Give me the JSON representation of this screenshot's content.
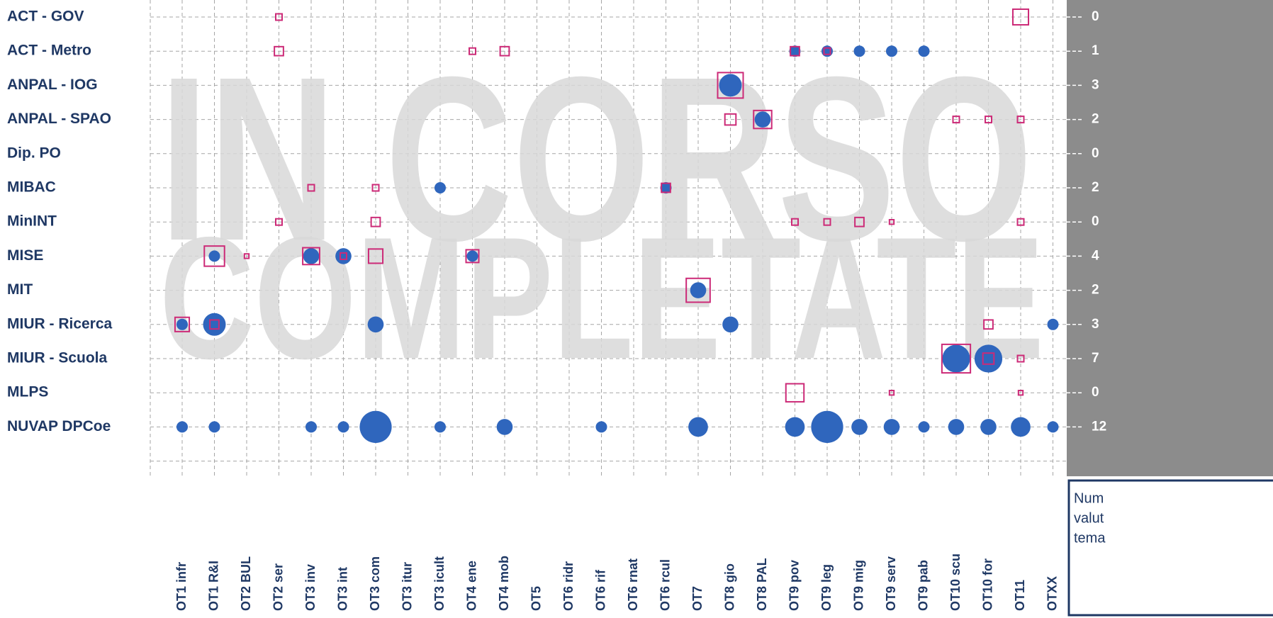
{
  "chart_data": {
    "type": "bubble-matrix",
    "rows": [
      "ACT - GOV",
      "ACT - Metro",
      "ANPAL - IOG",
      "ANPAL - SPAO",
      "Dip. PO",
      "MIBAC",
      "MinINT",
      "MISE",
      "MIT",
      "MIUR - Ricerca",
      "MIUR - Scuola",
      "MLPS",
      "NUVAP DPCoe"
    ],
    "categories": [
      "OT1 infr",
      "OT1 R&I",
      "OT2 BUL",
      "OT2 ser",
      "OT3 inv",
      "OT3 int",
      "OT3 com",
      "OT3 itur",
      "OT3 icult",
      "OT4 ene",
      "OT4 mob",
      "OT5",
      "OT6 ridr",
      "OT6 rif",
      "OT6 rnat",
      "OT6 rcul",
      "OT7",
      "OT8 gio",
      "OT8 PAL",
      "OT9 pov",
      "OT9 leg",
      "OT9 mig",
      "OT9 serv",
      "OT9 pab",
      "OT10 scu",
      "OT10 for",
      "OT11",
      "OTXX"
    ],
    "totals": [
      0,
      1,
      3,
      2,
      0,
      2,
      0,
      4,
      2,
      3,
      7,
      0,
      12
    ],
    "note": [
      "Num",
      "valut",
      "tema"
    ],
    "series": [
      {
        "name": "COMPLETATE",
        "shape": "circle",
        "color": "#2f66bd",
        "values": [
          [
            null,
            null,
            null,
            null,
            null,
            null,
            null,
            null,
            null,
            null,
            null,
            null,
            null,
            null,
            null,
            null,
            null,
            null,
            null,
            null,
            null,
            null,
            null,
            null,
            null,
            null,
            null,
            null
          ],
          [
            null,
            null,
            null,
            null,
            null,
            null,
            null,
            null,
            null,
            null,
            null,
            null,
            null,
            null,
            null,
            null,
            null,
            null,
            null,
            1,
            1,
            1,
            1,
            1,
            null,
            null,
            null,
            null
          ],
          [
            null,
            null,
            null,
            null,
            null,
            null,
            null,
            null,
            null,
            null,
            null,
            null,
            null,
            null,
            null,
            null,
            null,
            4,
            null,
            null,
            null,
            null,
            null,
            null,
            null,
            null,
            null,
            null
          ],
          [
            null,
            null,
            null,
            null,
            null,
            null,
            null,
            null,
            null,
            null,
            null,
            null,
            null,
            null,
            null,
            null,
            null,
            null,
            2,
            null,
            null,
            null,
            null,
            null,
            null,
            null,
            null,
            null
          ],
          [
            null,
            null,
            null,
            null,
            null,
            null,
            null,
            null,
            null,
            null,
            null,
            null,
            null,
            null,
            null,
            null,
            null,
            null,
            null,
            null,
            null,
            null,
            null,
            null,
            null,
            null,
            null,
            null
          ],
          [
            null,
            null,
            null,
            null,
            null,
            null,
            null,
            null,
            1,
            null,
            null,
            null,
            null,
            null,
            null,
            1,
            null,
            null,
            null,
            null,
            null,
            null,
            null,
            null,
            null,
            null,
            null,
            null
          ],
          [
            null,
            null,
            null,
            null,
            null,
            null,
            null,
            null,
            null,
            null,
            null,
            null,
            null,
            null,
            null,
            null,
            null,
            null,
            null,
            null,
            null,
            null,
            null,
            null,
            null,
            null,
            null,
            null
          ],
          [
            null,
            1,
            null,
            null,
            2,
            2,
            null,
            null,
            null,
            1,
            null,
            null,
            null,
            null,
            null,
            null,
            null,
            null,
            null,
            null,
            null,
            null,
            null,
            null,
            null,
            null,
            null,
            null
          ],
          [
            null,
            null,
            null,
            null,
            null,
            null,
            null,
            null,
            null,
            null,
            null,
            null,
            null,
            null,
            null,
            null,
            2,
            null,
            null,
            null,
            null,
            null,
            null,
            null,
            null,
            null,
            null,
            null
          ],
          [
            1,
            4,
            null,
            null,
            null,
            null,
            2,
            null,
            null,
            null,
            null,
            null,
            null,
            null,
            null,
            null,
            null,
            2,
            null,
            null,
            null,
            null,
            null,
            null,
            null,
            null,
            null,
            1
          ],
          [
            null,
            null,
            null,
            null,
            null,
            null,
            null,
            null,
            null,
            null,
            null,
            null,
            null,
            null,
            null,
            null,
            null,
            null,
            null,
            null,
            null,
            null,
            null,
            null,
            6,
            6,
            null,
            null
          ],
          [
            null,
            null,
            null,
            null,
            null,
            null,
            null,
            null,
            null,
            null,
            null,
            null,
            null,
            null,
            null,
            null,
            null,
            null,
            null,
            null,
            null,
            null,
            null,
            null,
            null,
            null,
            null,
            null
          ],
          [
            1,
            1,
            null,
            null,
            1,
            1,
            8,
            null,
            1,
            null,
            2,
            null,
            null,
            1,
            null,
            null,
            3,
            null,
            null,
            3,
            8,
            2,
            2,
            1,
            2,
            2,
            3,
            1
          ]
        ]
      },
      {
        "name": "IN CORSO",
        "shape": "square",
        "color": "#cc2a77",
        "values": [
          [
            null,
            null,
            null,
            1,
            null,
            null,
            null,
            null,
            null,
            null,
            null,
            null,
            null,
            null,
            null,
            null,
            null,
            null,
            null,
            null,
            null,
            null,
            null,
            null,
            null,
            null,
            6,
            null
          ],
          [
            null,
            null,
            null,
            2,
            null,
            null,
            null,
            null,
            null,
            1,
            2,
            null,
            null,
            null,
            null,
            null,
            null,
            null,
            null,
            2,
            1,
            null,
            null,
            null,
            null,
            null,
            null,
            null
          ],
          [
            null,
            null,
            null,
            null,
            null,
            null,
            null,
            null,
            null,
            null,
            null,
            null,
            null,
            null,
            null,
            null,
            null,
            16,
            null,
            null,
            null,
            null,
            null,
            null,
            null,
            null,
            null,
            null
          ],
          [
            null,
            null,
            null,
            null,
            null,
            null,
            null,
            null,
            null,
            null,
            null,
            null,
            null,
            null,
            null,
            null,
            null,
            3,
            8,
            null,
            null,
            null,
            null,
            null,
            1,
            1,
            1,
            null
          ],
          [
            null,
            null,
            null,
            null,
            null,
            null,
            null,
            null,
            null,
            null,
            null,
            null,
            null,
            null,
            null,
            null,
            null,
            null,
            null,
            null,
            null,
            null,
            null,
            null,
            null,
            null,
            null,
            null
          ],
          [
            null,
            null,
            null,
            null,
            1,
            null,
            1,
            null,
            null,
            null,
            null,
            null,
            null,
            null,
            null,
            2,
            null,
            null,
            null,
            null,
            null,
            null,
            null,
            null,
            null,
            null,
            null,
            null
          ],
          [
            null,
            null,
            null,
            1,
            null,
            null,
            2,
            null,
            null,
            null,
            null,
            null,
            null,
            null,
            null,
            null,
            null,
            null,
            null,
            1,
            1,
            2,
            0.5,
            null,
            null,
            null,
            1,
            null
          ],
          [
            null,
            10,
            0.5,
            null,
            7,
            1,
            5,
            null,
            null,
            4,
            null,
            null,
            null,
            null,
            null,
            null,
            null,
            null,
            null,
            null,
            null,
            null,
            null,
            null,
            null,
            null,
            null,
            null
          ],
          [
            null,
            null,
            null,
            null,
            null,
            null,
            null,
            null,
            null,
            null,
            null,
            null,
            null,
            null,
            null,
            null,
            14,
            null,
            null,
            null,
            null,
            null,
            null,
            null,
            null,
            null,
            null,
            null
          ],
          [
            5,
            2,
            null,
            null,
            null,
            null,
            null,
            null,
            null,
            null,
            null,
            null,
            null,
            null,
            null,
            null,
            null,
            null,
            null,
            null,
            null,
            null,
            null,
            null,
            null,
            2,
            null,
            null
          ],
          [
            null,
            null,
            null,
            null,
            null,
            null,
            null,
            null,
            null,
            null,
            null,
            null,
            null,
            null,
            null,
            null,
            null,
            null,
            null,
            null,
            null,
            null,
            null,
            null,
            20,
            3,
            1,
            null
          ],
          [
            null,
            null,
            null,
            null,
            null,
            null,
            null,
            null,
            null,
            null,
            null,
            null,
            null,
            null,
            null,
            null,
            null,
            null,
            null,
            8,
            null,
            null,
            0.5,
            null,
            null,
            null,
            0.5,
            null
          ],
          [
            null,
            null,
            null,
            null,
            null,
            null,
            null,
            null,
            null,
            null,
            null,
            null,
            null,
            null,
            null,
            null,
            null,
            null,
            null,
            null,
            null,
            null,
            null,
            null,
            null,
            null,
            null,
            null
          ]
        ]
      }
    ]
  }
}
